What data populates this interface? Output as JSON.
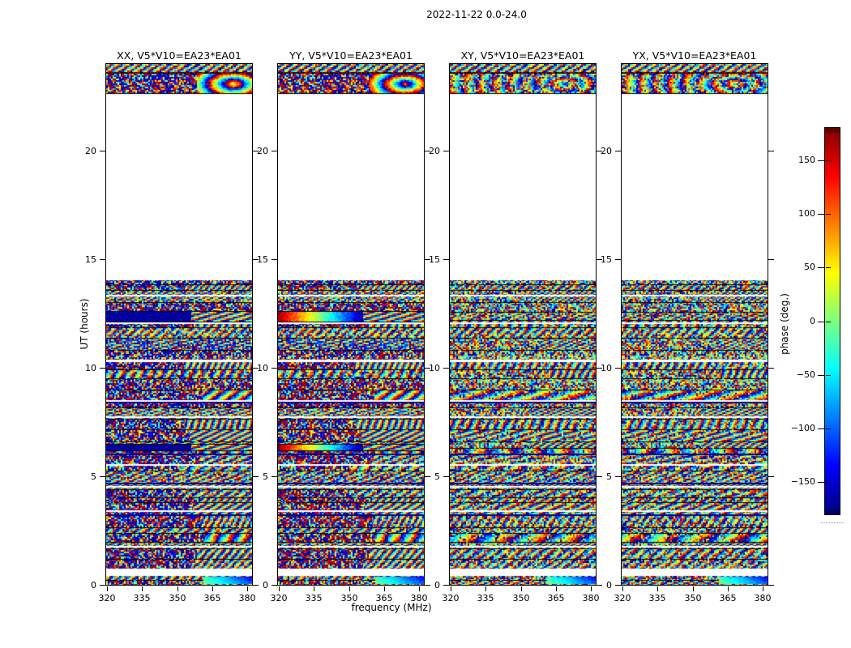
{
  "figure": {
    "suptitle": "2022-11-22 0.0-24.0",
    "xlabel": "frequency (MHz)",
    "ylabel": "UT (hours)",
    "colorbar_label": "phase (deg.)"
  },
  "chart_data": {
    "type": "heatmap",
    "title": "2022-11-22 0.0-24.0",
    "xlabel": "frequency (MHz)",
    "ylabel": "UT (hours)",
    "panels": [
      {
        "label": "XX, V5*V10=EA23*EA01"
      },
      {
        "label": "YY, V5*V10=EA23*EA01"
      },
      {
        "label": "XY, V5*V10=EA23*EA01"
      },
      {
        "label": "YX, V5*V10=EA23*EA01"
      }
    ],
    "x_ticks": [
      320,
      335,
      350,
      365,
      380
    ],
    "y_ticks": [
      0,
      5,
      10,
      15,
      20
    ],
    "x_range_mhz": [
      319.6,
      382.4
    ],
    "y_range_hours": [
      0,
      24
    ],
    "grid": false,
    "colorbar": {
      "label": "phase (deg.)",
      "ticks": [
        150,
        100,
        50,
        0,
        -50,
        -100,
        -150
      ],
      "range_deg": [
        -180,
        180
      ],
      "colormap": "jet",
      "orientation": "vertical",
      "position": "right"
    },
    "data_time_blocks_hours": [
      [
        0.0,
        14.05
      ],
      [
        22.62,
        24.0
      ]
    ],
    "empty_time_gaps_hours": [
      [
        14.05,
        22.62
      ],
      [
        13.28,
        13.38
      ],
      [
        12.02,
        12.09
      ],
      [
        10.28,
        10.38
      ],
      [
        8.42,
        8.5
      ],
      [
        7.7,
        7.78
      ],
      [
        5.5,
        5.58
      ],
      [
        4.5,
        4.57
      ],
      [
        3.38,
        3.45
      ],
      [
        1.7,
        1.78
      ],
      [
        0.4,
        0.76
      ]
    ],
    "notable_features": [
      "solid low-phase (dark blue) band near 12.2-12.6 h in XX",
      "red-to-blue phase ramp near 12.2-12.6 h in YY",
      "solid band near 6.2-6.45 h in XX and YY",
      "wrapped-phase noise elsewhere in data blocks"
    ]
  }
}
